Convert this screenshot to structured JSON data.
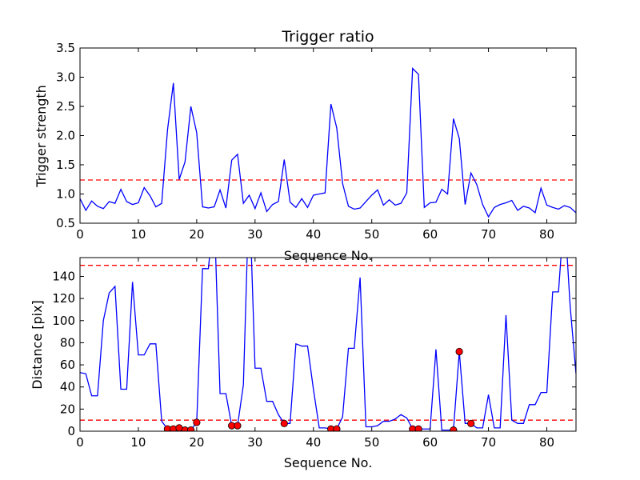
{
  "chart_data": [
    {
      "type": "line",
      "title": "Trigger ratio",
      "xlabel": "Sequence No.",
      "ylabel": "Trigger strength",
      "xlim": [
        0,
        85
      ],
      "ylim": [
        0.5,
        3.5
      ],
      "xticks": [
        0,
        10,
        20,
        30,
        40,
        50,
        60,
        70,
        80
      ],
      "yticks": [
        0.5,
        1.0,
        1.5,
        2.0,
        2.5,
        3.0,
        3.5
      ],
      "ytick_labels": [
        "0.5",
        "1.0",
        "1.5",
        "2.0",
        "2.5",
        "3.0",
        "3.5"
      ],
      "grid": false,
      "series": [
        {
          "color": "#0000ff",
          "x": [
            0,
            1,
            2,
            3,
            4,
            5,
            6,
            7,
            8,
            9,
            10,
            11,
            12,
            13,
            14,
            15,
            16,
            17,
            18,
            19,
            20,
            21,
            22,
            23,
            24,
            25,
            26,
            27,
            28,
            29,
            30,
            31,
            32,
            33,
            34,
            35,
            36,
            37,
            38,
            39,
            40,
            41,
            42,
            43,
            44,
            45,
            46,
            47,
            48,
            49,
            50,
            51,
            52,
            53,
            54,
            55,
            56,
            57,
            58,
            59,
            60,
            61,
            62,
            63,
            64,
            65,
            66,
            67,
            68,
            69,
            70,
            71,
            72,
            73,
            74,
            75,
            76,
            77,
            78,
            79,
            80,
            81,
            82,
            83,
            84,
            85
          ],
          "y": [
            0.92,
            0.72,
            0.88,
            0.79,
            0.75,
            0.87,
            0.84,
            1.08,
            0.87,
            0.82,
            0.85,
            1.11,
            0.97,
            0.78,
            0.84,
            2.1,
            2.9,
            1.25,
            1.55,
            2.5,
            2.05,
            0.78,
            0.76,
            0.78,
            1.07,
            0.76,
            1.58,
            1.68,
            0.84,
            0.98,
            0.75,
            1.02,
            0.7,
            0.82,
            0.87,
            1.59,
            0.86,
            0.77,
            0.92,
            0.77,
            0.98,
            1.0,
            1.02,
            2.54,
            2.13,
            1.18,
            0.79,
            0.74,
            0.76,
            0.87,
            0.98,
            1.07,
            0.81,
            0.9,
            0.81,
            0.84,
            1.02,
            3.15,
            3.05,
            0.77,
            0.85,
            0.86,
            1.08,
            1.0,
            2.29,
            1.95,
            0.82,
            1.36,
            1.16,
            0.82,
            0.61,
            0.77,
            0.82,
            0.85,
            0.89,
            0.72,
            0.79,
            0.76,
            0.68,
            1.1,
            0.81,
            0.77,
            0.74,
            0.8,
            0.77,
            0.68
          ]
        }
      ],
      "threshold_lines": [
        {
          "y": 1.24,
          "color": "#ff0000",
          "style": "dashed"
        }
      ]
    },
    {
      "type": "line",
      "xlabel": "Sequence No.",
      "ylabel": "Distance [pix]",
      "xlim": [
        0,
        85
      ],
      "ylim": [
        0,
        157
      ],
      "xticks": [
        0,
        10,
        20,
        30,
        40,
        50,
        60,
        70,
        80
      ],
      "yticks": [
        0,
        20,
        40,
        60,
        80,
        100,
        120,
        140
      ],
      "grid": false,
      "series": [
        {
          "color": "#0000ff",
          "x": [
            0,
            1,
            2,
            3,
            4,
            5,
            6,
            7,
            8,
            9,
            10,
            11,
            12,
            13,
            14,
            15,
            16,
            17,
            18,
            19,
            20,
            21,
            22,
            23,
            24,
            25,
            26,
            27,
            28,
            29,
            30,
            31,
            32,
            33,
            34,
            35,
            36,
            37,
            38,
            39,
            40,
            41,
            42,
            43,
            44,
            45,
            46,
            47,
            48,
            49,
            50,
            51,
            52,
            53,
            54,
            55,
            56,
            57,
            58,
            59,
            60,
            61,
            62,
            63,
            64,
            65,
            66,
            67,
            68,
            69,
            70,
            71,
            72,
            73,
            74,
            75,
            76,
            77,
            78,
            79,
            80,
            81,
            82,
            83,
            84,
            85
          ],
          "y": [
            53,
            52,
            32,
            32,
            100,
            125,
            131,
            38,
            38,
            135,
            69,
            69,
            79,
            79,
            9,
            2,
            2,
            3,
            1,
            1,
            8,
            147,
            147,
            200,
            34,
            34,
            5,
            5,
            42,
            220,
            57,
            57,
            27,
            27,
            15,
            7,
            7,
            79,
            77,
            77,
            38,
            3,
            3,
            2,
            2,
            13,
            75,
            75,
            139,
            4,
            4,
            5,
            9,
            9,
            11,
            15,
            12,
            2,
            2,
            2,
            2,
            74,
            1,
            1,
            1,
            72,
            7,
            7,
            3,
            3,
            33,
            3,
            3,
            105,
            10,
            7,
            7,
            24,
            24,
            35,
            35,
            126,
            126,
            200,
            113,
            52
          ]
        }
      ],
      "markers": {
        "color": "#ff0000",
        "x": [
          15,
          16,
          17,
          18,
          19,
          20,
          26,
          27,
          35,
          43,
          44,
          57,
          58,
          64,
          65,
          67
        ],
        "y": [
          2,
          2,
          3,
          1,
          1,
          8,
          5,
          5,
          7,
          2,
          2,
          2,
          2,
          1,
          72,
          7
        ]
      },
      "threshold_lines": [
        {
          "y": 150,
          "color": "#ff0000",
          "style": "dashed"
        },
        {
          "y": 10,
          "color": "#ff0000",
          "style": "dashed"
        }
      ]
    }
  ]
}
